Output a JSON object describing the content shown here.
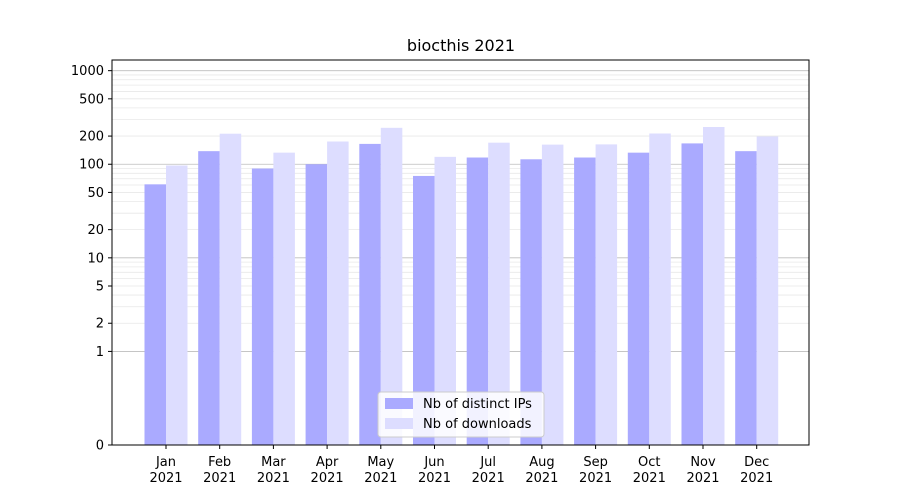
{
  "chart_data": {
    "type": "bar",
    "title": "biocthis 2021",
    "xlabel": "",
    "ylabel": "",
    "yscale": "symlog",
    "ylim": [
      0,
      1300
    ],
    "yticks": [
      0,
      1,
      2,
      5,
      10,
      20,
      50,
      100,
      200,
      500,
      1000
    ],
    "grid": true,
    "legend_position": "bottom-center",
    "categories": [
      "Jan\n2021",
      "Feb\n2021",
      "Mar\n2021",
      "Apr\n2021",
      "May\n2021",
      "Jun\n2021",
      "Jul\n2021",
      "Aug\n2021",
      "Sep\n2021",
      "Oct\n2021",
      "Nov\n2021",
      "Dec\n2021"
    ],
    "series": [
      {
        "name": "Nb of distinct IPs",
        "color": "#aaaaff",
        "values": [
          61,
          138,
          90,
          100,
          165,
          75,
          118,
          113,
          118,
          133,
          167,
          138
        ]
      },
      {
        "name": "Nb of downloads",
        "color": "#ddddff",
        "values": [
          97,
          212,
          133,
          175,
          245,
          120,
          170,
          162,
          163,
          213,
          250,
          198
        ]
      }
    ]
  }
}
